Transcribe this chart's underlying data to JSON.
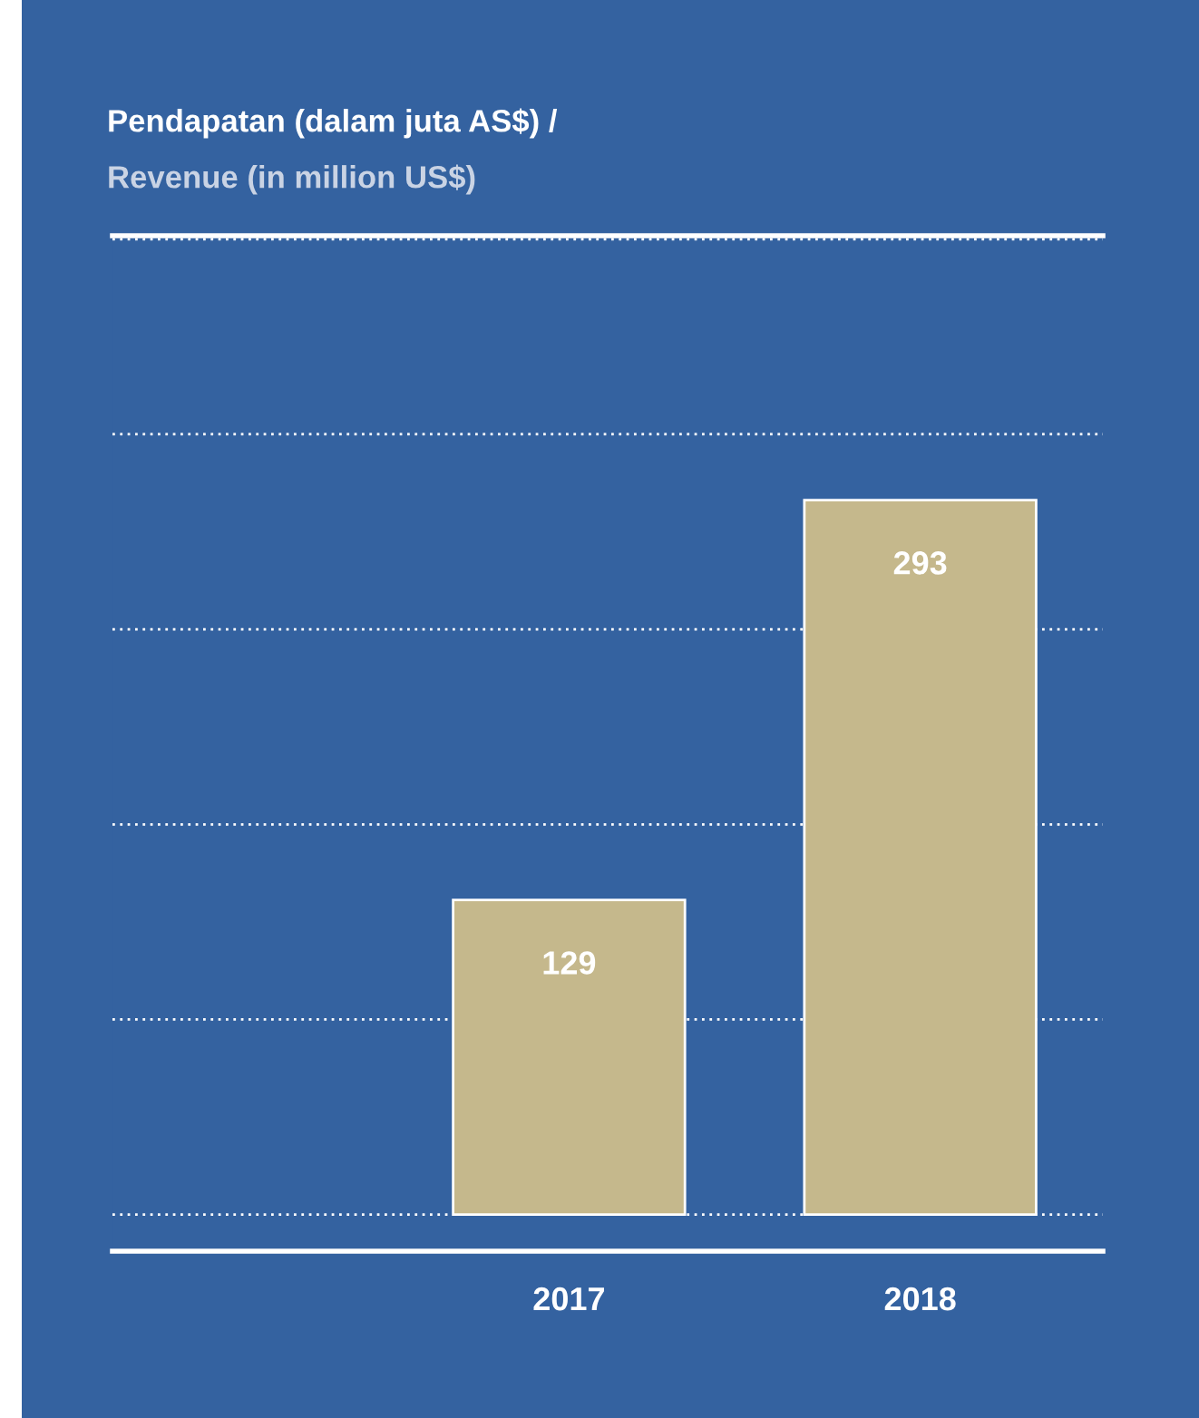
{
  "chart_data": {
    "type": "bar",
    "title": "Pendapatan (dalam juta AS$) /",
    "subtitle": "Revenue (in million US$)",
    "categories": [
      "2017",
      "2018"
    ],
    "values": [
      129,
      293
    ],
    "color": "#c5b88c",
    "data_labels": true,
    "grid": "y",
    "legend": false
  }
}
